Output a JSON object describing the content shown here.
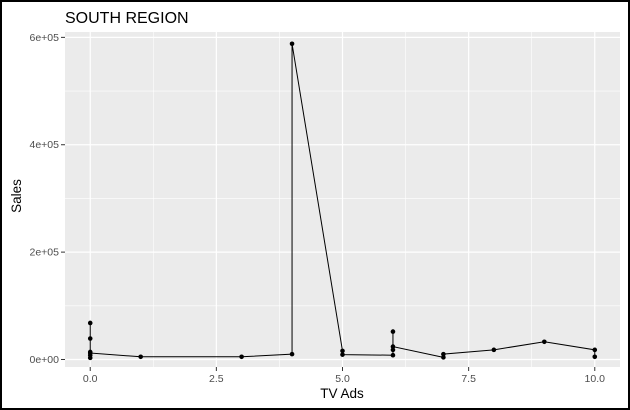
{
  "chart_data": {
    "type": "line",
    "title": "SOUTH REGION",
    "xlabel": "TV Ads",
    "ylabel": "Sales",
    "xlim": [
      -0.5,
      10.5
    ],
    "ylim": [
      -14000,
      610000
    ],
    "x_ticks": [
      0,
      2.5,
      5,
      7.5,
      10
    ],
    "x_tick_labels": [
      "0.0",
      "2.5",
      "5.0",
      "7.5",
      "10.0"
    ],
    "y_ticks": [
      0,
      200000,
      400000,
      600000
    ],
    "y_tick_labels": [
      "0e+00",
      "2e+05",
      "4e+05",
      "6e+05"
    ],
    "grid": true,
    "legend": "none",
    "colors": {
      "panel": "#ebebeb",
      "grid": "#ffffff",
      "series": "#000000"
    },
    "series": [
      {
        "points": [
          [
            0,
            68000
          ],
          [
            0,
            39000
          ],
          [
            0,
            14000
          ],
          [
            0,
            8000
          ],
          [
            0,
            3000
          ],
          [
            0,
            12000
          ],
          [
            1,
            5000
          ],
          [
            3,
            5000
          ],
          [
            4,
            10000
          ],
          [
            4,
            588000
          ],
          [
            5,
            16000
          ],
          [
            5,
            9000
          ],
          [
            6,
            8000
          ],
          [
            6,
            18000
          ],
          [
            6,
            52000
          ],
          [
            6,
            24000
          ],
          [
            7,
            4000
          ],
          [
            7,
            10000
          ],
          [
            8,
            18000
          ],
          [
            9,
            33000
          ],
          [
            10,
            18000
          ],
          [
            10,
            5000
          ]
        ]
      }
    ]
  }
}
